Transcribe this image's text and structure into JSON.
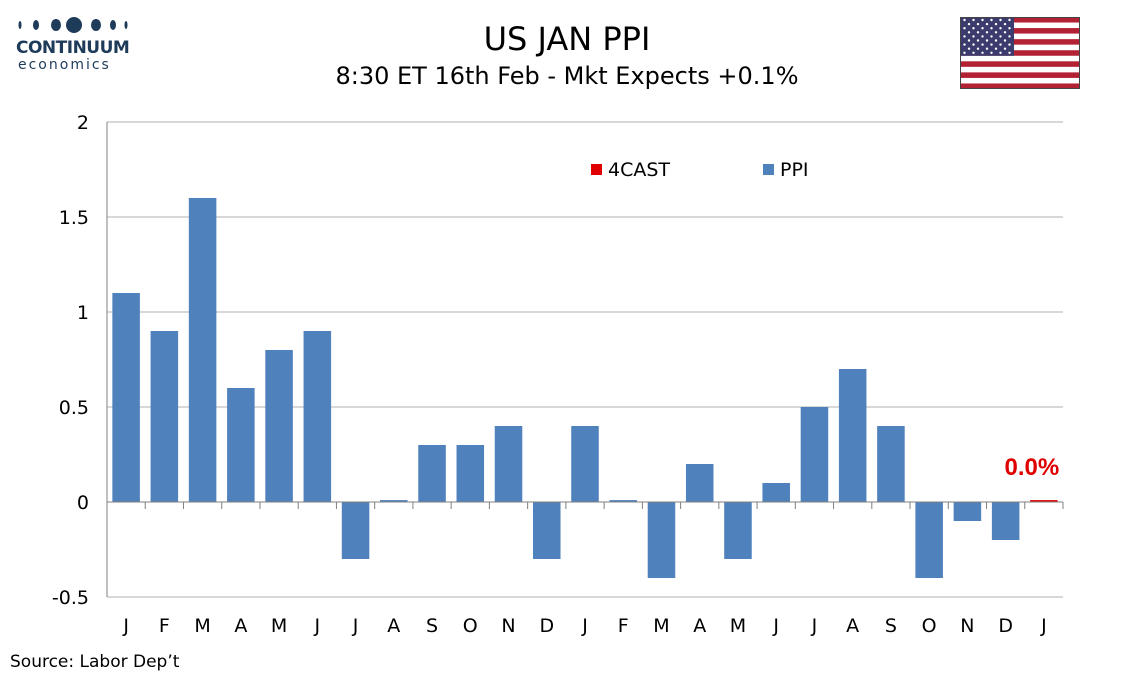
{
  "header": {
    "logo_name": "CONTINUUM",
    "logo_sub": "economics",
    "title": "US JAN PPI",
    "subtitle": "8:30 ET 16th Feb - Mkt Expects +0.1%"
  },
  "footer": {
    "source": "Source: Labor Dep’t"
  },
  "colors": {
    "ppi": "#4f81bd",
    "forecast": "#e00000",
    "grid": "#b0b0b0",
    "flag_red": "#b22234",
    "flag_blue": "#3c3b6e"
  },
  "flag_icon": "us-flag-icon",
  "chart_data": {
    "type": "bar",
    "categories": [
      "J",
      "F",
      "M",
      "A",
      "M",
      "J",
      "J",
      "A",
      "S",
      "O",
      "N",
      "D",
      "J",
      "F",
      "M",
      "A",
      "M",
      "J",
      "J",
      "A",
      "S",
      "O",
      "N",
      "D",
      "J"
    ],
    "series": [
      {
        "name": "PPI",
        "values": [
          1.1,
          0.9,
          1.6,
          0.6,
          0.8,
          0.9,
          -0.3,
          0.01,
          0.3,
          0.3,
          0.4,
          -0.3,
          0.4,
          0.01,
          -0.4,
          0.2,
          -0.3,
          0.1,
          0.5,
          0.7,
          0.4,
          -0.4,
          -0.1,
          -0.2,
          null
        ]
      },
      {
        "name": "4CAST",
        "values": [
          null,
          null,
          null,
          null,
          null,
          null,
          null,
          null,
          null,
          null,
          null,
          null,
          null,
          null,
          null,
          null,
          null,
          null,
          null,
          null,
          null,
          null,
          null,
          null,
          0.01
        ]
      }
    ],
    "legend": [
      "4CAST",
      "PPI"
    ],
    "legend_position": "top-center",
    "annotation": "0.0%",
    "y_ticks": [
      "2",
      "1.5",
      "1",
      "0.5",
      "0",
      "-0.5"
    ],
    "ylim": [
      -0.5,
      2
    ],
    "grid": true
  }
}
